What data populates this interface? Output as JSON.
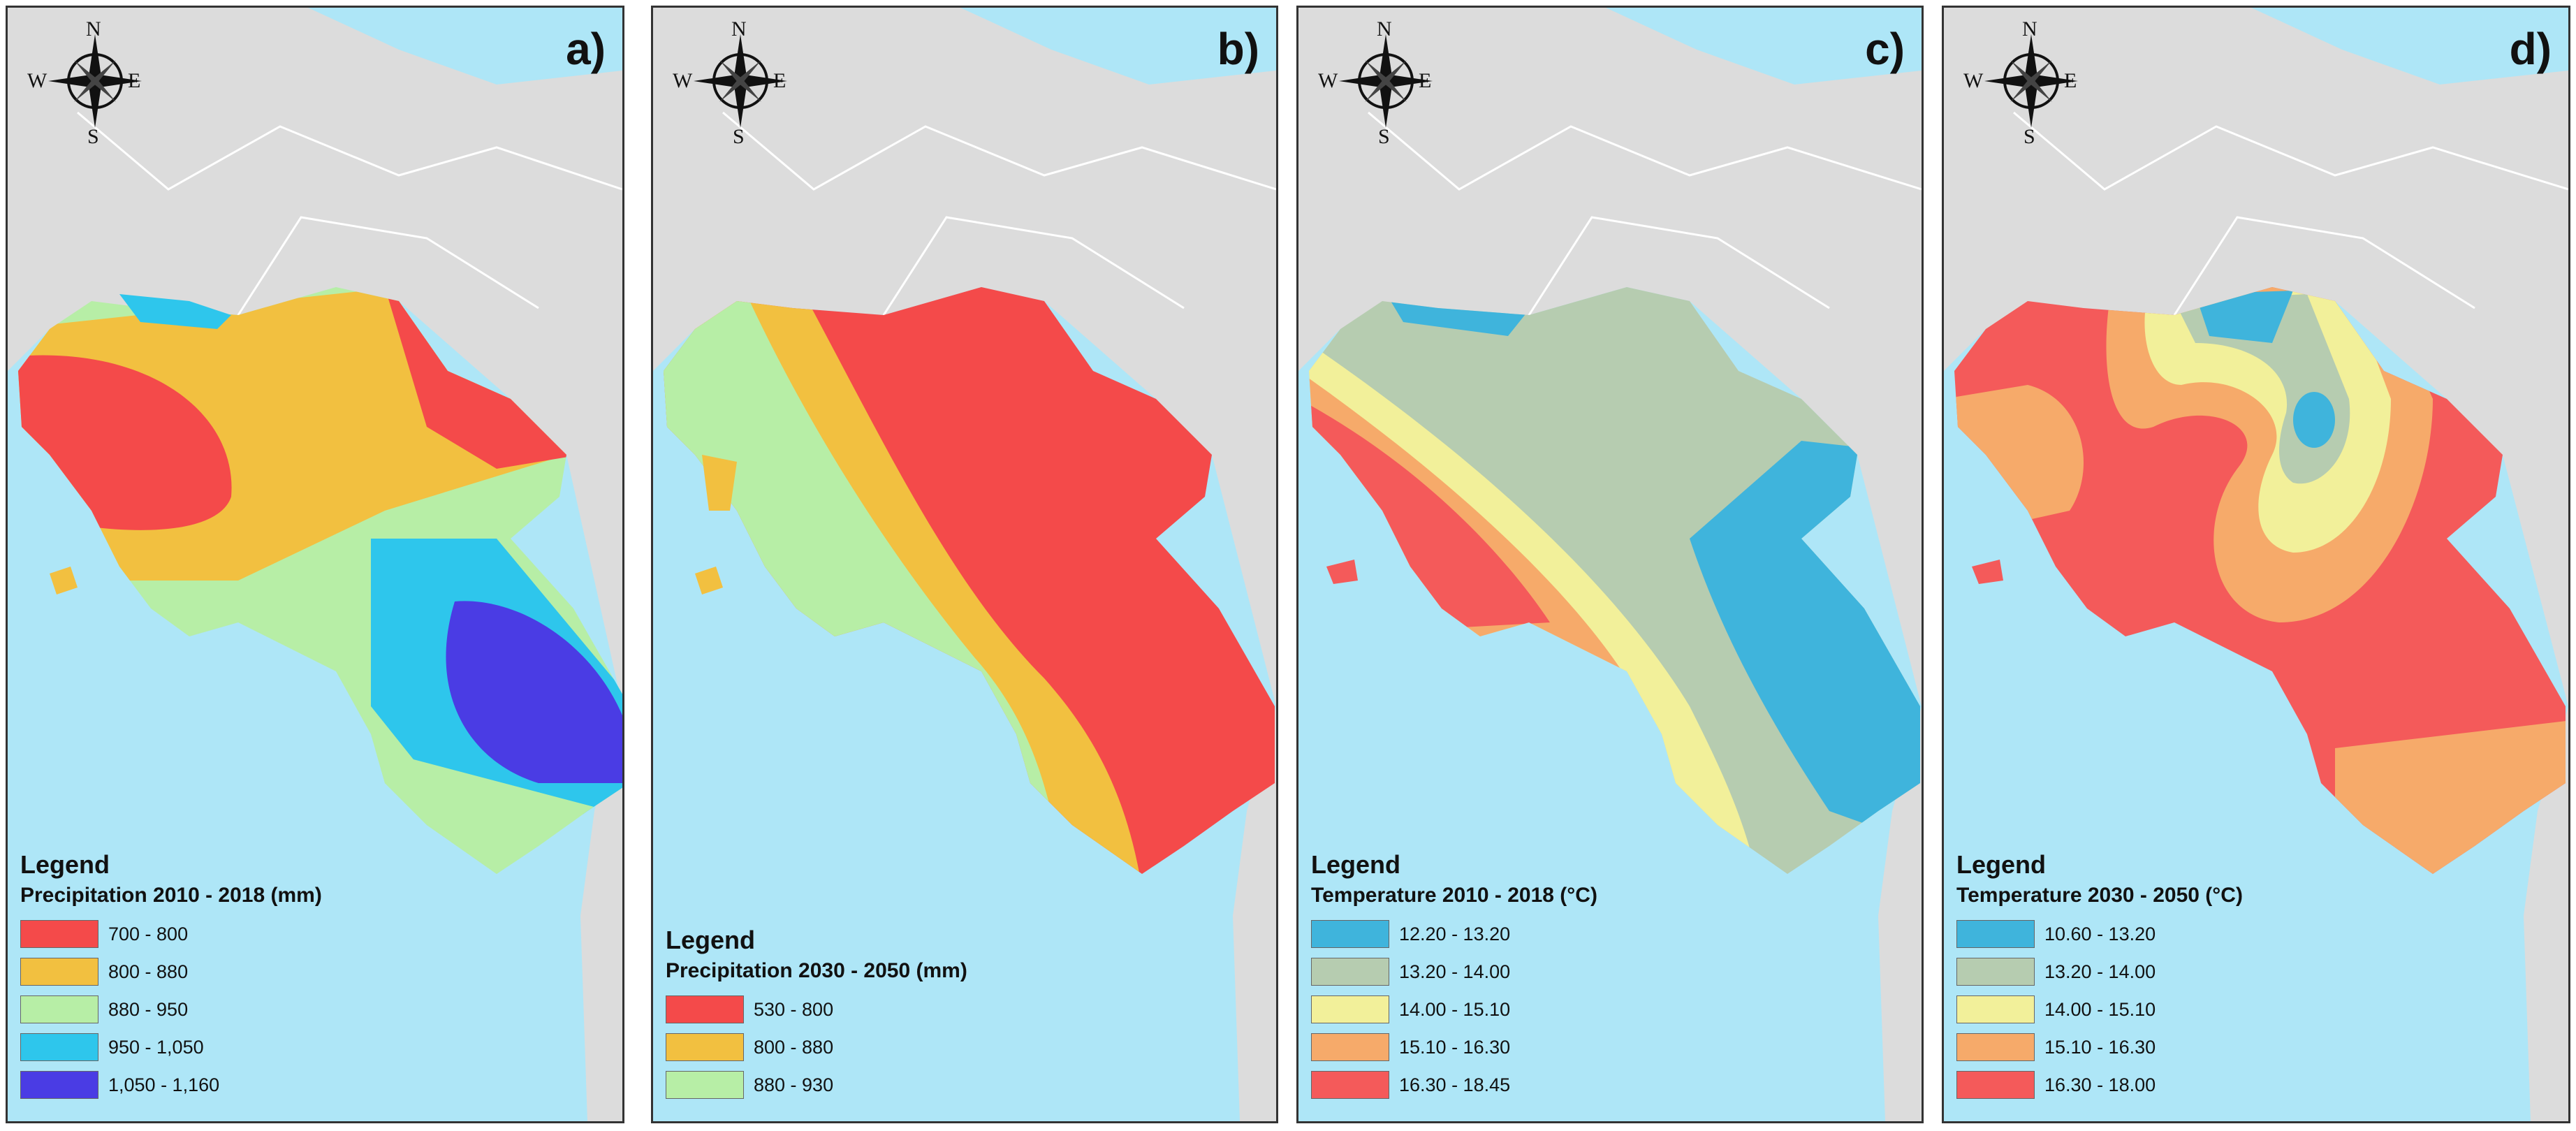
{
  "panels": [
    {
      "label": "a)",
      "legend_title": "Legend",
      "legend_subtitle": "Precipitation 2010 - 2018 (mm)",
      "classes": [
        {
          "label": "700 - 800",
          "color": "#f44a4a"
        },
        {
          "label": "800 - 880",
          "color": "#f2c040"
        },
        {
          "label": "880 - 950",
          "color": "#b7eea6"
        },
        {
          "label": "950 - 1,050",
          "color": "#2ec6ec"
        },
        {
          "label": "1,050 - 1,160",
          "color": "#4a3ce4"
        }
      ]
    },
    {
      "label": "b)",
      "legend_title": "Legend",
      "legend_subtitle": "Precipitation 2030 - 2050 (mm)",
      "classes": [
        {
          "label": "530 - 800",
          "color": "#f44a4a"
        },
        {
          "label": "800 - 880",
          "color": "#f2c040"
        },
        {
          "label": "880 - 930",
          "color": "#b7eea6"
        }
      ]
    },
    {
      "label": "c)",
      "legend_title": "Legend",
      "legend_subtitle": "Temperature 2010 - 2018 (°C)",
      "classes": [
        {
          "label": "12.20 - 13.20",
          "color": "#3fb4dc"
        },
        {
          "label": "13.20 - 14.00",
          "color": "#b6ccb0"
        },
        {
          "label": "14.00 - 15.10",
          "color": "#f2f09a"
        },
        {
          "label": "15.10 - 16.30",
          "color": "#f6aa6a"
        },
        {
          "label": "16.30 - 18.45",
          "color": "#f45a5a"
        }
      ]
    },
    {
      "label": "d)",
      "legend_title": "Legend",
      "legend_subtitle": "Temperature 2030 - 2050 (°C)",
      "classes": [
        {
          "label": "10.60 - 13.20",
          "color": "#3fb4dc"
        },
        {
          "label": "13.20 - 14.00",
          "color": "#b6ccb0"
        },
        {
          "label": "14.00 - 15.10",
          "color": "#f2f09a"
        },
        {
          "label": "15.10 - 16.30",
          "color": "#f6aa6a"
        },
        {
          "label": "16.30 - 18.00",
          "color": "#f45a5a"
        }
      ]
    }
  ],
  "compass": {
    "north": "N",
    "south": "S",
    "east": "E",
    "west": "W"
  },
  "colors": {
    "sea": "#aee6f7",
    "land_outside": "#dcdcdc",
    "border_lines": "#ffffff"
  }
}
